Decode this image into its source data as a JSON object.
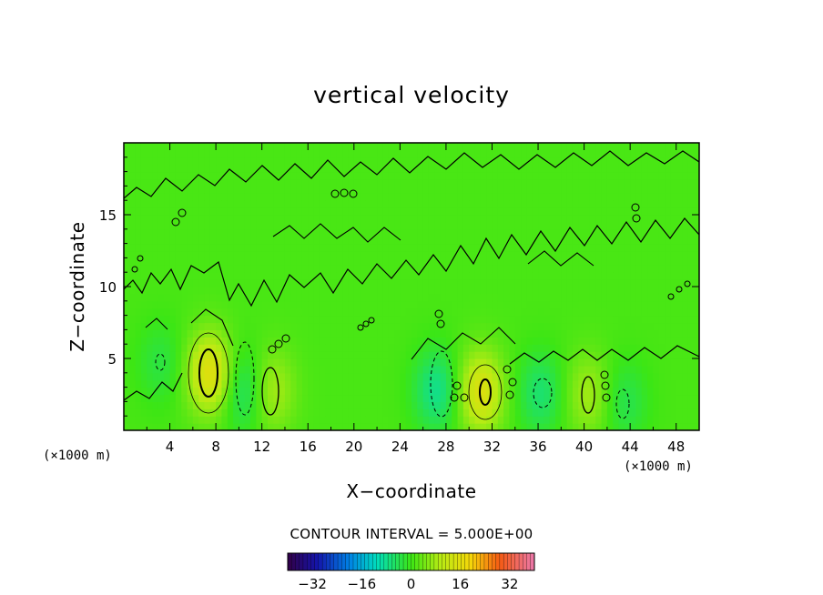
{
  "chart_data": {
    "type": "heatmap",
    "title": "vertical velocity",
    "xlabel": "X−coordinate",
    "ylabel": "Z−coordinate",
    "x_unit_note": "(×1000 m)",
    "y_unit_note": "(×1000 m)",
    "xlim": [
      0,
      50
    ],
    "ylim": [
      0,
      20
    ],
    "x_ticks": [
      4,
      8,
      12,
      16,
      20,
      24,
      28,
      32,
      36,
      40,
      44,
      48
    ],
    "x_tick_labels": [
      "4",
      "8",
      "12",
      "16",
      "20",
      "24",
      "28",
      "32",
      "36",
      "40",
      "44",
      "48"
    ],
    "y_ticks": [
      5,
      10,
      15
    ],
    "y_tick_labels": [
      "5",
      "10",
      "15"
    ],
    "contour_interval_text": "CONTOUR INTERVAL = 5.000E+00",
    "colorbar": {
      "range": [
        -40,
        40
      ],
      "ticks": [
        -32,
        -16,
        0,
        16,
        32
      ],
      "tick_labels": [
        "−32",
        "−16",
        "0",
        "16",
        "32"
      ]
    },
    "background_value": 1,
    "features": [
      {
        "x": 7.5,
        "z": 4.0,
        "value": 15,
        "note": "updraft"
      },
      {
        "x": 31.0,
        "z": 2.7,
        "value": 14,
        "note": "updraft"
      },
      {
        "x": 12.8,
        "z": 2.8,
        "value": 8,
        "note": "updraft"
      },
      {
        "x": 40.4,
        "z": 2.5,
        "value": 7,
        "note": "updraft"
      },
      {
        "x": 10.5,
        "z": 2.8,
        "value": -8,
        "note": "downdraft"
      },
      {
        "x": 27.2,
        "z": 2.8,
        "value": -9,
        "note": "downdraft"
      },
      {
        "x": 36.2,
        "z": 2.6,
        "value": -7,
        "note": "downdraft"
      },
      {
        "x": 43.5,
        "z": 2.0,
        "value": -5,
        "note": "downdraft"
      },
      {
        "x": 3.2,
        "z": 4.7,
        "value": -4,
        "note": "downdraft"
      }
    ]
  }
}
